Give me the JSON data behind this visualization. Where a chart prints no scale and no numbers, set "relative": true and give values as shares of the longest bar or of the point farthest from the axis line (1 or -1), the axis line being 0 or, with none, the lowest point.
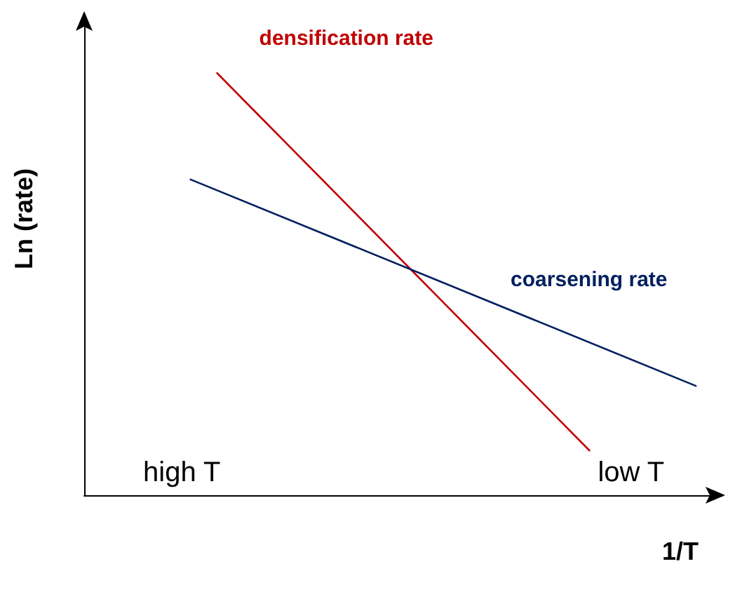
{
  "chart_data": {
    "type": "line",
    "relative": true,
    "xlabel": "1/T",
    "ylabel": "Ln (rate)",
    "categories": [
      null,
      null,
      null,
      null,
      null,
      null,
      null,
      null,
      null,
      null,
      null,
      null,
      null,
      null,
      null,
      null,
      null,
      null,
      null,
      null,
      null,
      null,
      null,
      null,
      null
    ],
    "series": [
      {
        "name": "densification rate",
        "color": "#c00000",
        "values": [
          null,
          null,
          null,
          null,
          null,
          1,
          null,
          null,
          null,
          null,
          null,
          null,
          null,
          null,
          null,
          null,
          null,
          null,
          null,
          0.106,
          null,
          null,
          null,
          null,
          null
        ]
      },
      {
        "name": "coarsening rate",
        "color": "#002060",
        "values": [
          null,
          null,
          null,
          null,
          0.748,
          null,
          null,
          null,
          null,
          null,
          null,
          null,
          null,
          null,
          null,
          null,
          null,
          null,
          null,
          null,
          null,
          null,
          null,
          0.259,
          null
        ]
      }
    ],
    "annotations": [
      "high T",
      "low T"
    ],
    "marker": "none",
    "grid": false,
    "legend": false
  }
}
